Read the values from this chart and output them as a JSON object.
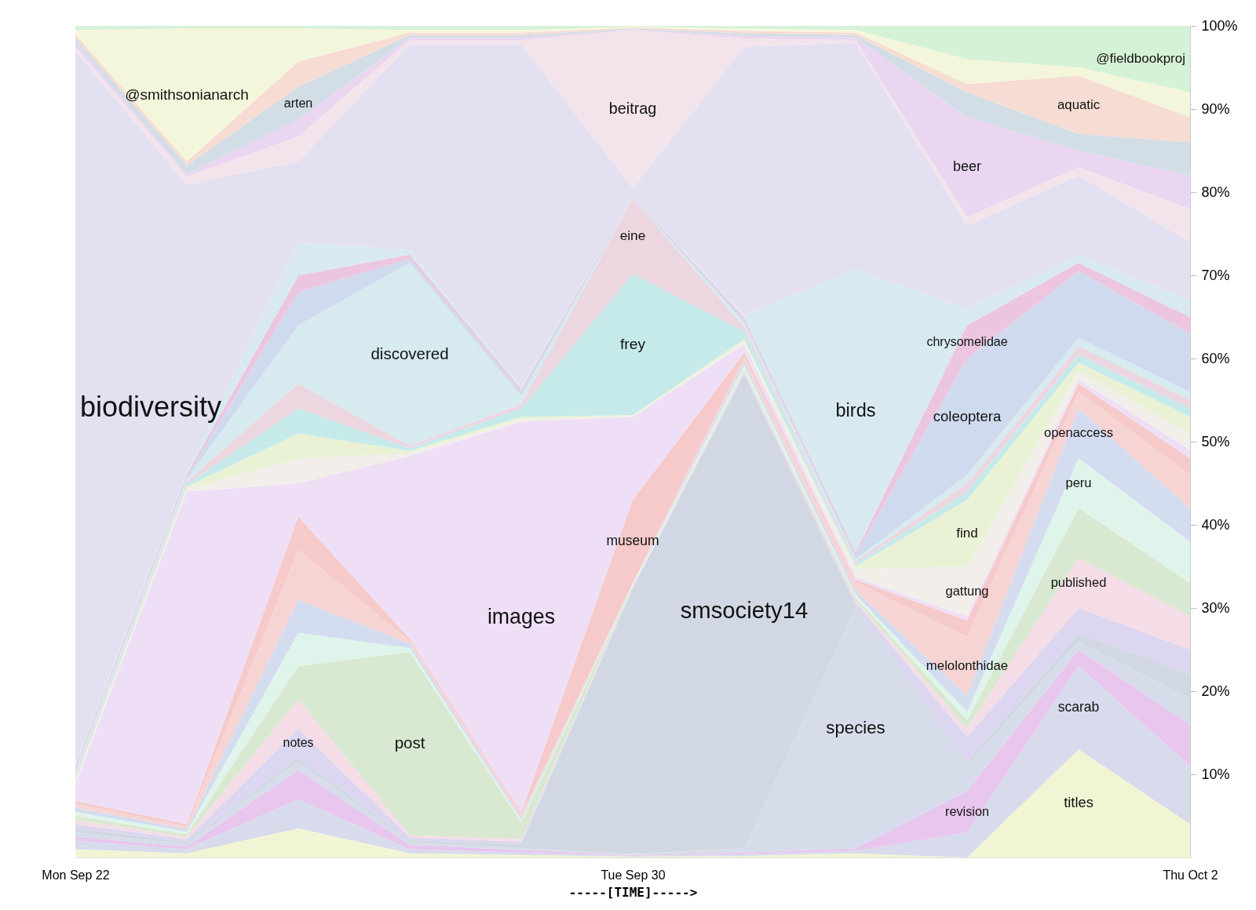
{
  "chart_data": {
    "type": "area",
    "stacked": true,
    "xlabel": "-----[TIME]----->",
    "categories": [
      "Mon Sep 22",
      null,
      null,
      null,
      null,
      "Tue Sep 30",
      null,
      null,
      null,
      null,
      "Thu Oct 2"
    ],
    "ylim": [
      0,
      100
    ],
    "yticks": [
      {
        "value": 10,
        "label": "10%"
      },
      {
        "value": 20,
        "label": "20%"
      },
      {
        "value": 30,
        "label": "30%"
      },
      {
        "value": 40,
        "label": "40%"
      },
      {
        "value": 50,
        "label": "50%"
      },
      {
        "value": 60,
        "label": "60%"
      },
      {
        "value": 70,
        "label": "70%"
      },
      {
        "value": 80,
        "label": "80%"
      },
      {
        "value": 90,
        "label": "90%"
      },
      {
        "value": 100,
        "label": "100%"
      }
    ],
    "series": [
      {
        "name": "titles",
        "color": "#f2f5d4",
        "values": [
          1,
          0.5,
          3.5,
          0.5,
          0.3,
          0.1,
          0.2,
          0.5,
          0,
          13,
          4
        ]
      },
      {
        "name": "scarab",
        "color": "#d8dbec",
        "values": [
          1,
          0.5,
          3.5,
          0.5,
          0.3,
          0.1,
          0.2,
          0.3,
          3,
          10,
          7
        ]
      },
      {
        "name": "revision",
        "color": "#e8c6ee",
        "values": [
          0.5,
          0.3,
          3.5,
          0.5,
          0.3,
          0.1,
          0.2,
          0.3,
          5,
          2,
          5
        ]
      },
      {
        "name": "species",
        "color": "#d7dcea",
        "values": [
          0.5,
          0.3,
          1,
          0.3,
          0.2,
          0.1,
          0.5,
          29,
          3,
          1,
          3
        ]
      },
      {
        "name": "smsociety14",
        "color": "#d1d8e3",
        "values": [
          0.5,
          0.3,
          0.5,
          0.3,
          0.5,
          32,
          57,
          0.3,
          0.5,
          1,
          3
        ]
      },
      {
        "name": "notes",
        "color": "#dcd6f0",
        "values": [
          0.5,
          0.3,
          3.5,
          0.3,
          0.3,
          0.1,
          0.2,
          0.3,
          3,
          3,
          3
        ]
      },
      {
        "name": "published",
        "color": "#f4dde6",
        "values": [
          0.5,
          0.3,
          3.5,
          0.3,
          0.3,
          0.1,
          0.2,
          0.3,
          1,
          6,
          4
        ]
      },
      {
        "name": "post",
        "color": "#d9e8d0",
        "values": [
          0.5,
          0.3,
          4,
          22,
          2,
          0.1,
          0.2,
          0.3,
          1,
          6,
          4
        ]
      },
      {
        "name": "peru",
        "color": "#dff4ea",
        "values": [
          0.5,
          0.3,
          4,
          0.5,
          0.3,
          0.1,
          0.5,
          0.3,
          1,
          6,
          5
        ]
      },
      {
        "name": "openaccess",
        "color": "#d4dcef",
        "values": [
          0.5,
          0.3,
          4,
          0.5,
          0.3,
          0.1,
          0.5,
          0.5,
          2,
          6,
          4
        ]
      },
      {
        "name": "melolonthidae",
        "color": "#f6d4d4",
        "values": [
          0.5,
          0.3,
          6,
          0.3,
          0.3,
          0.1,
          0.5,
          1,
          7,
          2,
          4
        ]
      },
      {
        "name": "museum",
        "color": "#f6caca",
        "values": [
          0.3,
          0.3,
          4,
          0.3,
          0.3,
          10,
          0.5,
          0.3,
          2,
          1,
          2
        ]
      },
      {
        "name": "images",
        "color": "#eedff6",
        "values": [
          2,
          40,
          4,
          22,
          47,
          10,
          1,
          0.3,
          0.5,
          0.5,
          1
        ]
      },
      {
        "name": "gattung",
        "color": "#f2eeea",
        "values": [
          0.3,
          0.3,
          3,
          0.3,
          0.3,
          0.1,
          0.3,
          1,
          6,
          1,
          2
        ]
      },
      {
        "name": "find",
        "color": "#e9f2d4",
        "values": [
          0.3,
          0.3,
          3,
          0.3,
          0.3,
          0.1,
          0.3,
          0.3,
          8,
          1,
          2
        ]
      },
      {
        "name": "frey",
        "color": "#c6eaea",
        "values": [
          0.3,
          0.3,
          3,
          0.3,
          1,
          17,
          1,
          0.3,
          1,
          1,
          1
        ]
      },
      {
        "name": "eine",
        "color": "#ecd6e0",
        "values": [
          0.3,
          0.3,
          3,
          0.3,
          0.5,
          9,
          0.5,
          0.3,
          1,
          1,
          1
        ]
      },
      {
        "name": "discovered",
        "color": "#d6eaf0",
        "values": [
          0.3,
          0.3,
          7,
          22,
          1,
          0.1,
          0.5,
          0.3,
          1,
          1,
          1
        ]
      },
      {
        "name": "coleoptera",
        "color": "#d0daee",
        "values": [
          0.3,
          0.3,
          4,
          0.5,
          0.5,
          0.1,
          0.3,
          0.5,
          14,
          8,
          7
        ]
      },
      {
        "name": "chrysomelidae",
        "color": "#ecc6e0",
        "values": [
          0.3,
          0.3,
          2,
          0.5,
          0.3,
          0.1,
          0.3,
          0.3,
          4,
          1,
          2
        ]
      },
      {
        "name": "birds",
        "color": "#d8eaf0",
        "values": [
          0.3,
          0.3,
          4,
          0.5,
          0.3,
          0.1,
          0.3,
          34,
          2,
          1,
          2
        ]
      },
      {
        "name": "biodiversity",
        "color": "#e3e0f2",
        "values": [
          85.8,
          34.5,
          9.7,
          24.8,
          41.2,
          0.9,
          32.3,
          27.3,
          10,
          9.5,
          7
        ]
      },
      {
        "name": "beitrag",
        "color": "#f2e4ea",
        "values": [
          0.5,
          1,
          3,
          0.5,
          0.5,
          19,
          1,
          0.3,
          1,
          1,
          4
        ]
      },
      {
        "name": "beer",
        "color": "#ead6f0",
        "values": [
          0.5,
          0.3,
          2,
          0.3,
          0.3,
          0.1,
          0.3,
          0.3,
          12,
          2,
          4
        ]
      },
      {
        "name": "arten",
        "color": "#d2dde6",
        "values": [
          0.5,
          1,
          4,
          0.3,
          0.3,
          0.1,
          0.3,
          0.3,
          3,
          2,
          4
        ]
      },
      {
        "name": "aquatic",
        "color": "#f6dcd2",
        "values": [
          0.5,
          0.5,
          3,
          0.3,
          0.3,
          0.1,
          0.3,
          0.3,
          1,
          7,
          3
        ]
      },
      {
        "name": "@smithsonianarch",
        "color": "#f4f6dc",
        "values": [
          0.5,
          16,
          4,
          0.3,
          0.3,
          0.1,
          0.3,
          0.3,
          3,
          1,
          3
        ]
      },
      {
        "name": "@fieldbookproj",
        "color": "#d6f2d6",
        "values": [
          0.5,
          0.3,
          0.3,
          0.5,
          0.5,
          0.1,
          0.3,
          0.5,
          4,
          5,
          8
        ]
      }
    ]
  }
}
